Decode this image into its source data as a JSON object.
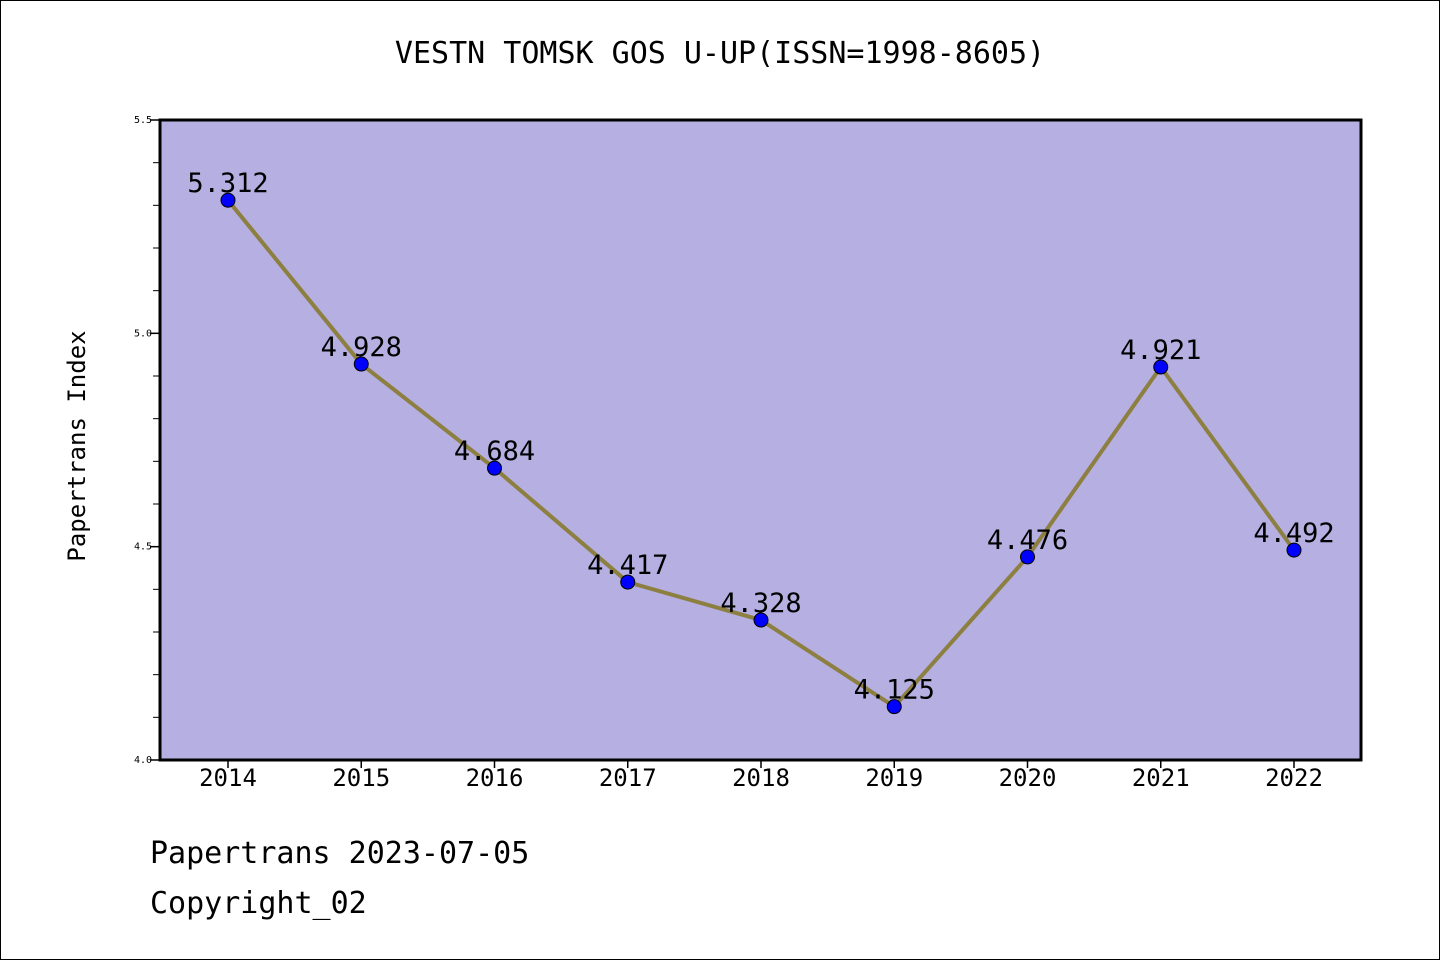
{
  "chart_data": {
    "type": "line",
    "title": "VESTN TOMSK GOS U-UP(ISSN=1998-8605)",
    "xlabel": "",
    "ylabel": "Papertrans Index",
    "x": [
      "2014",
      "2015",
      "2016",
      "2017",
      "2018",
      "2019",
      "2020",
      "2021",
      "2022"
    ],
    "series": [
      {
        "values": [
          5.312,
          4.928,
          4.684,
          4.417,
          4.328,
          4.125,
          4.476,
          4.921,
          4.492
        ],
        "labels": [
          "5.312",
          "4.928",
          "4.684",
          "4.417",
          "4.328",
          "4.125",
          "4.476",
          "4.921",
          "4.492"
        ]
      }
    ],
    "ylim": [
      4.0,
      5.5
    ],
    "y_ticks": [
      "4.0",
      "4.5",
      "5.0",
      "5.5"
    ],
    "grid": false,
    "colors": {
      "plot_background": "#b5afe2",
      "line": "#8c7f40",
      "marker": "#0000ff"
    }
  },
  "footer": {
    "date_line": "Papertrans 2023-07-05",
    "copyright": "Copyright_02"
  }
}
